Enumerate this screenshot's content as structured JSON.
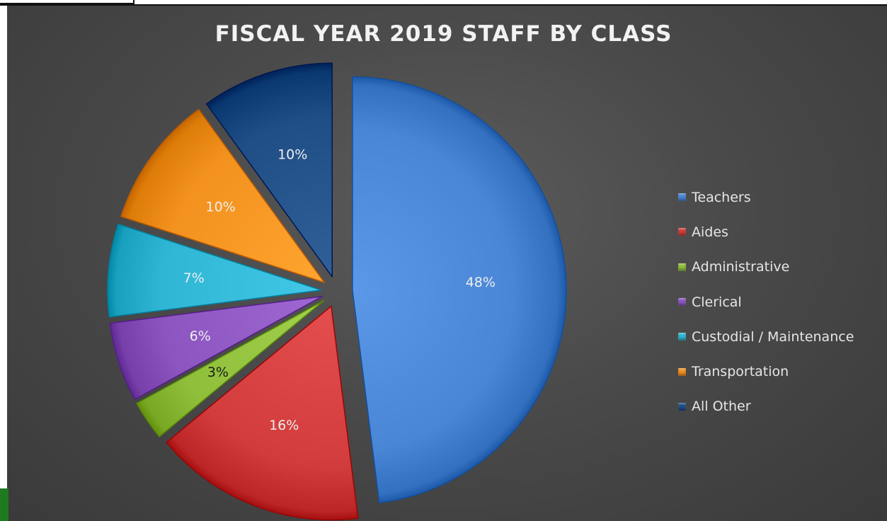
{
  "chart_data": {
    "type": "pie",
    "title": "FISCAL YEAR 2019 STAFF BY CLASS",
    "categories": [
      "Teachers",
      "Aides",
      "Administrative",
      "Clerical",
      "Custodial / Maintenance",
      "Transportation",
      "All Other"
    ],
    "values": [
      48,
      16,
      3,
      6,
      7,
      10,
      10
    ],
    "value_labels": [
      "48%",
      "16%",
      "3%",
      "6%",
      "7%",
      "10%",
      "10%"
    ],
    "colors": [
      "#4a86d6",
      "#d23c3c",
      "#8fbf3a",
      "#8c55c0",
      "#2fb6d4",
      "#f3921e",
      "#1f4e86"
    ],
    "exploded": true,
    "start_angle_deg": 0,
    "direction": "clockwise",
    "legend_position": "right"
  },
  "colors": {
    "background": "#4a4a4a",
    "text": "#e6e6e6",
    "title": "#f2f2f2"
  }
}
